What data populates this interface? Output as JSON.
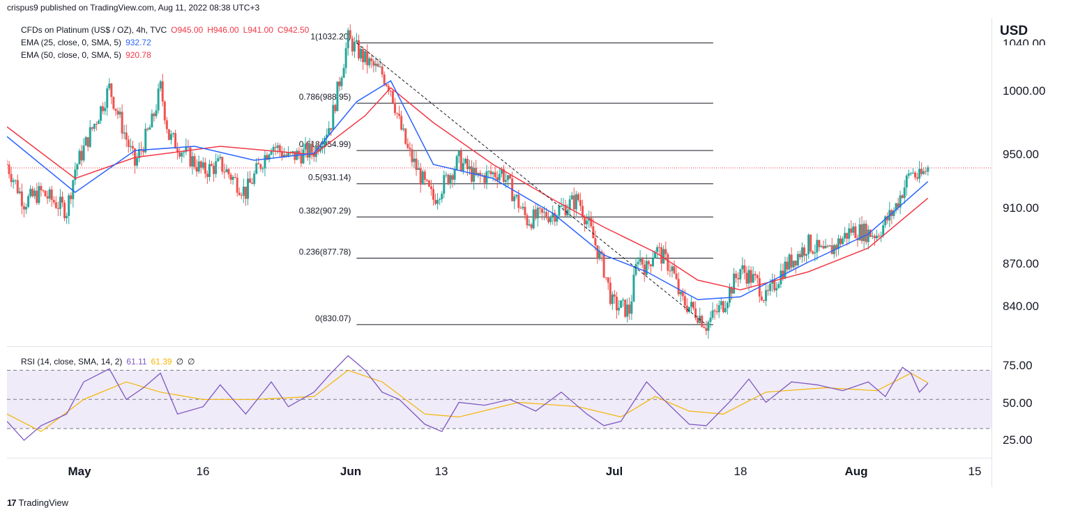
{
  "publisher_line": "crispus9 published on TradingView.com, Aug 11, 2022 08:38 UTC+3",
  "branding": {
    "logo_text": "TradingView",
    "logo_mark": "17"
  },
  "legend": {
    "symbol": "CFDs on Platinum (US$ / OZ), 4h, TVC",
    "open_label": "O945.00",
    "high_label": "H946.00",
    "low_label": "L941.00",
    "close_label": "C942.50",
    "ema25_label": "EMA (25, close, 0, SMA, 5)",
    "ema25_value": "932.72",
    "ema50_label": "EMA (50, close, 0, SMA, 5)",
    "ema50_value": "920.78",
    "rsi_label": "RSI (14, close, SMA, 14, 2)",
    "rsi_value": "61.11",
    "rsi_ma_value": "61.39",
    "rsi_extra_1": "∅",
    "rsi_extra_2": "∅"
  },
  "price_axis": {
    "currency": "USD",
    "labels": [
      "1040.00",
      "1000.00",
      "950.00",
      "910.00",
      "870.00",
      "840.00"
    ]
  },
  "rsi_axis": {
    "labels": [
      "75.00",
      "50.00",
      "25.00"
    ]
  },
  "time_axis": {
    "labels": [
      {
        "text": "May",
        "bold": true
      },
      {
        "text": "16",
        "bold": false
      },
      {
        "text": "Jun",
        "bold": true
      },
      {
        "text": "13",
        "bold": false
      },
      {
        "text": "Jul",
        "bold": true
      },
      {
        "text": "18",
        "bold": false
      },
      {
        "text": "Aug",
        "bold": true
      },
      {
        "text": "15",
        "bold": false
      }
    ]
  },
  "colors": {
    "up": "#26a69a",
    "down": "#ef5350",
    "ema25": "#2962ff",
    "ema50": "#f23645",
    "rsi": "#7e57c2",
    "rsi_ma": "#f5b400",
    "rsi_band": "#7e57c2"
  },
  "chart_data": [
    {
      "type": "candlestick",
      "symbol": "CFDs on Platinum (US$ / OZ)",
      "interval": "4h",
      "ylim": [
        815,
        1050
      ],
      "xlim_days": [
        "2022-04-25",
        "2022-08-16"
      ],
      "close_path": [
        [
          "2022-04-25",
          945
        ],
        [
          "2022-04-27",
          918
        ],
        [
          "2022-04-29",
          925
        ],
        [
          "2022-05-02",
          912
        ],
        [
          "2022-05-03",
          942
        ],
        [
          "2022-05-06",
          985
        ],
        [
          "2022-05-07",
          1000
        ],
        [
          "2022-05-10",
          945
        ],
        [
          "2022-05-12",
          975
        ],
        [
          "2022-05-13",
          1000
        ],
        [
          "2022-05-14",
          965
        ],
        [
          "2022-05-18",
          940
        ],
        [
          "2022-05-20",
          945
        ],
        [
          "2022-05-23",
          925
        ],
        [
          "2022-05-26",
          960
        ],
        [
          "2022-05-28",
          950
        ],
        [
          "2022-05-31",
          955
        ],
        [
          "2022-06-02",
          975
        ],
        [
          "2022-06-04",
          1035
        ],
        [
          "2022-06-06",
          1020
        ],
        [
          "2022-06-08",
          1010
        ],
        [
          "2022-06-09",
          1000
        ],
        [
          "2022-06-10",
          975
        ],
        [
          "2022-06-11",
          955
        ],
        [
          "2022-06-13",
          930
        ],
        [
          "2022-06-14",
          920
        ],
        [
          "2022-06-17",
          948
        ],
        [
          "2022-06-19",
          935
        ],
        [
          "2022-06-22",
          940
        ],
        [
          "2022-06-25",
          905
        ],
        [
          "2022-06-28",
          910
        ],
        [
          "2022-07-01",
          920
        ],
        [
          "2022-07-02",
          905
        ],
        [
          "2022-07-04",
          870
        ],
        [
          "2022-07-05",
          845
        ],
        [
          "2022-07-07",
          840
        ],
        [
          "2022-07-08",
          880
        ],
        [
          "2022-07-09",
          870
        ],
        [
          "2022-07-10",
          885
        ],
        [
          "2022-07-12",
          870
        ],
        [
          "2022-07-13",
          848
        ],
        [
          "2022-07-15",
          838
        ],
        [
          "2022-07-16",
          830
        ],
        [
          "2022-07-18",
          845
        ],
        [
          "2022-07-20",
          870
        ],
        [
          "2022-07-22",
          860
        ],
        [
          "2022-07-23",
          848
        ],
        [
          "2022-07-25",
          870
        ],
        [
          "2022-07-28",
          888
        ],
        [
          "2022-07-30",
          880
        ],
        [
          "2022-08-02",
          898
        ],
        [
          "2022-08-05",
          895
        ],
        [
          "2022-08-07",
          912
        ],
        [
          "2022-08-09",
          940
        ],
        [
          "2022-08-10",
          935
        ],
        [
          "2022-08-11",
          942.5
        ]
      ],
      "ema25_path": [
        [
          "2022-04-25",
          965
        ],
        [
          "2022-05-03",
          925
        ],
        [
          "2022-05-10",
          955
        ],
        [
          "2022-05-17",
          958
        ],
        [
          "2022-05-24",
          948
        ],
        [
          "2022-05-31",
          953
        ],
        [
          "2022-06-05",
          990
        ],
        [
          "2022-06-09",
          1005
        ],
        [
          "2022-06-14",
          945
        ],
        [
          "2022-06-21",
          935
        ],
        [
          "2022-06-28",
          910
        ],
        [
          "2022-07-04",
          880
        ],
        [
          "2022-07-09",
          868
        ],
        [
          "2022-07-15",
          848
        ],
        [
          "2022-07-20",
          850
        ],
        [
          "2022-07-28",
          875
        ],
        [
          "2022-08-04",
          895
        ],
        [
          "2022-08-11",
          932.72
        ]
      ],
      "ema50_path": [
        [
          "2022-04-25",
          972
        ],
        [
          "2022-05-03",
          935
        ],
        [
          "2022-05-10",
          950
        ],
        [
          "2022-05-20",
          958
        ],
        [
          "2022-05-31",
          952
        ],
        [
          "2022-06-06",
          980
        ],
        [
          "2022-06-09",
          1000
        ],
        [
          "2022-06-14",
          975
        ],
        [
          "2022-06-21",
          945
        ],
        [
          "2022-06-28",
          920
        ],
        [
          "2022-07-04",
          900
        ],
        [
          "2022-07-10",
          882
        ],
        [
          "2022-07-15",
          862
        ],
        [
          "2022-07-20",
          855
        ],
        [
          "2022-07-28",
          868
        ],
        [
          "2022-08-04",
          885
        ],
        [
          "2022-08-11",
          920.78
        ]
      ],
      "fibonacci": [
        {
          "level_label": "1(1032.20)",
          "price": 1032.2
        },
        {
          "level_label": "0.786(988.95)",
          "price": 988.95
        },
        {
          "level_label": "0.618(954.99)",
          "price": 954.99
        },
        {
          "level_label": "0.5(931.14)",
          "price": 931.14
        },
        {
          "level_label": "0.382(907.29)",
          "price": 907.29
        },
        {
          "level_label": "0.236(877.78)",
          "price": 877.78
        },
        {
          "level_label": "0(830.07)",
          "price": 830.07
        }
      ],
      "fib_range": [
        "2022-06-05",
        "2022-07-16"
      ],
      "trend_line": [
        [
          "2022-06-05",
          1032.2
        ],
        [
          "2022-07-16",
          830.07
        ]
      ],
      "last_price_line": 942.5
    },
    {
      "type": "line",
      "name": "RSI (14, close, SMA, 14, 2)",
      "ylim": [
        10,
        85
      ],
      "bands": [
        30,
        50,
        70
      ],
      "rsi_path": [
        [
          "2022-04-25",
          35
        ],
        [
          "2022-04-27",
          22
        ],
        [
          "2022-04-29",
          32
        ],
        [
          "2022-05-02",
          40
        ],
        [
          "2022-05-04",
          62
        ],
        [
          "2022-05-07",
          71
        ],
        [
          "2022-05-09",
          50
        ],
        [
          "2022-05-11",
          58
        ],
        [
          "2022-05-13",
          68
        ],
        [
          "2022-05-15",
          40
        ],
        [
          "2022-05-18",
          45
        ],
        [
          "2022-05-20",
          60
        ],
        [
          "2022-05-23",
          40
        ],
        [
          "2022-05-26",
          62
        ],
        [
          "2022-05-28",
          45
        ],
        [
          "2022-05-31",
          55
        ],
        [
          "2022-06-02",
          68
        ],
        [
          "2022-06-04",
          80
        ],
        [
          "2022-06-06",
          70
        ],
        [
          "2022-06-08",
          55
        ],
        [
          "2022-06-10",
          50
        ],
        [
          "2022-06-13",
          33
        ],
        [
          "2022-06-15",
          28
        ],
        [
          "2022-06-17",
          48
        ],
        [
          "2022-06-20",
          46
        ],
        [
          "2022-06-23",
          50
        ],
        [
          "2022-06-26",
          42
        ],
        [
          "2022-06-29",
          55
        ],
        [
          "2022-07-02",
          40
        ],
        [
          "2022-07-04",
          32
        ],
        [
          "2022-07-06",
          35
        ],
        [
          "2022-07-09",
          62
        ],
        [
          "2022-07-11",
          50
        ],
        [
          "2022-07-14",
          33
        ],
        [
          "2022-07-16",
          32
        ],
        [
          "2022-07-19",
          50
        ],
        [
          "2022-07-21",
          64
        ],
        [
          "2022-07-23",
          48
        ],
        [
          "2022-07-26",
          62
        ],
        [
          "2022-07-29",
          60
        ],
        [
          "2022-08-01",
          56
        ],
        [
          "2022-08-04",
          62
        ],
        [
          "2022-08-06",
          52
        ],
        [
          "2022-08-08",
          72
        ],
        [
          "2022-08-09",
          68
        ],
        [
          "2022-08-10",
          55
        ],
        [
          "2022-08-11",
          61.11
        ]
      ],
      "rsi_ma_path": [
        [
          "2022-04-25",
          40
        ],
        [
          "2022-04-29",
          28
        ],
        [
          "2022-05-04",
          50
        ],
        [
          "2022-05-09",
          62
        ],
        [
          "2022-05-13",
          55
        ],
        [
          "2022-05-18",
          50
        ],
        [
          "2022-05-24",
          50
        ],
        [
          "2022-05-31",
          52
        ],
        [
          "2022-06-04",
          70
        ],
        [
          "2022-06-08",
          62
        ],
        [
          "2022-06-13",
          40
        ],
        [
          "2022-06-17",
          38
        ],
        [
          "2022-06-24",
          48
        ],
        [
          "2022-07-01",
          45
        ],
        [
          "2022-07-06",
          38
        ],
        [
          "2022-07-10",
          52
        ],
        [
          "2022-07-14",
          42
        ],
        [
          "2022-07-18",
          40
        ],
        [
          "2022-07-23",
          55
        ],
        [
          "2022-07-30",
          58
        ],
        [
          "2022-08-05",
          56
        ],
        [
          "2022-08-09",
          68
        ],
        [
          "2022-08-11",
          61.39
        ]
      ]
    }
  ]
}
